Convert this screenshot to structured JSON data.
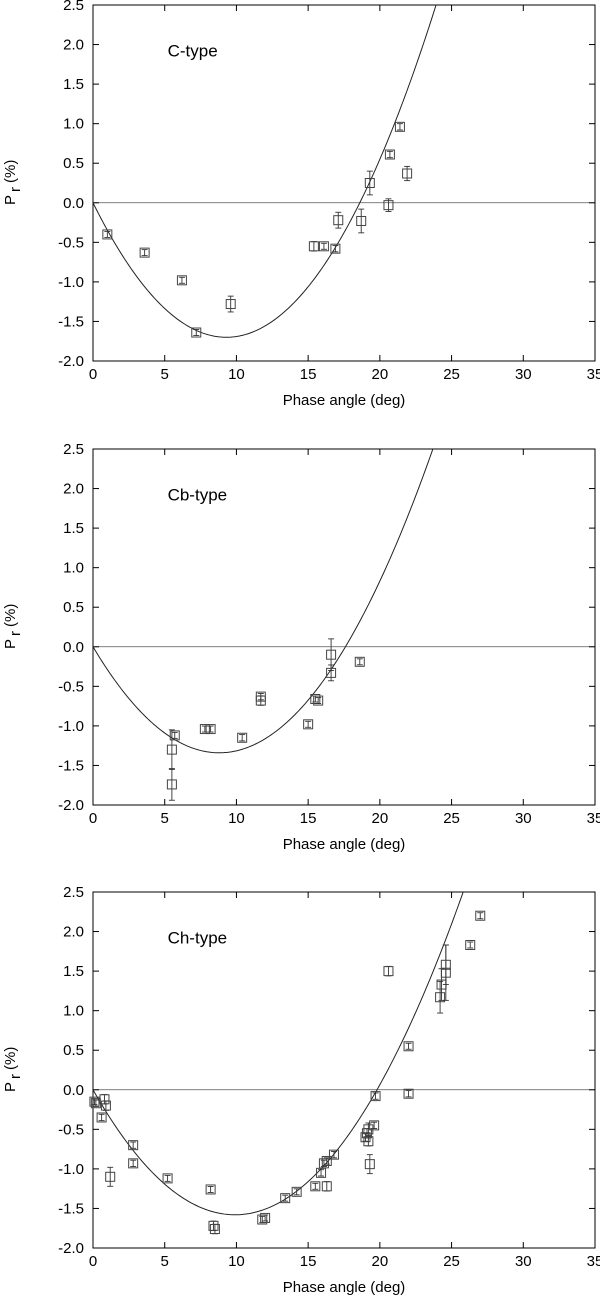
{
  "chart_data": [
    {
      "type": "scatter",
      "title": "C-type",
      "xlabel": "Phase angle (deg)",
      "ylabel_main": "P",
      "ylabel_sub": "r",
      "ylabel_unit": "(%)",
      "xlim": [
        0,
        35
      ],
      "ylim": [
        -2.0,
        2.5
      ],
      "x_ticks": [
        "0",
        "5",
        "10",
        "15",
        "20",
        "25",
        "30",
        "35"
      ],
      "y_ticks": [
        "-2.0",
        "-1.5",
        "-1.0",
        "-0.5",
        "0.0",
        "0.5",
        "1.0",
        "1.5",
        "2.0",
        "2.5"
      ],
      "grid": false,
      "zero_line": true,
      "fit_curve": {
        "type": "quadratic",
        "x_min": 9.3,
        "y_min": -1.7,
        "x_zero": 0,
        "x_max": 27.5
      },
      "points": [
        {
          "x": 1.0,
          "y": -0.4,
          "err": 0.03
        },
        {
          "x": 3.6,
          "y": -0.63,
          "err": 0.03
        },
        {
          "x": 6.2,
          "y": -0.98,
          "err": 0.03
        },
        {
          "x": 7.2,
          "y": -1.64,
          "err": 0.03
        },
        {
          "x": 9.6,
          "y": -1.28,
          "err": 0.1
        },
        {
          "x": 15.4,
          "y": -0.55,
          "err": 0.06
        },
        {
          "x": 16.1,
          "y": -0.55,
          "err": 0.03
        },
        {
          "x": 16.9,
          "y": -0.58,
          "err": 0.04
        },
        {
          "x": 17.1,
          "y": -0.22,
          "err": 0.1
        },
        {
          "x": 18.7,
          "y": -0.23,
          "err": 0.15
        },
        {
          "x": 19.3,
          "y": 0.25,
          "err": 0.15
        },
        {
          "x": 20.6,
          "y": -0.03,
          "err": 0.08
        },
        {
          "x": 20.7,
          "y": 0.61,
          "err": 0.04
        },
        {
          "x": 21.4,
          "y": 0.96,
          "err": 0.04
        },
        {
          "x": 21.9,
          "y": 0.37,
          "err": 0.09
        }
      ]
    },
    {
      "type": "scatter",
      "title": "Cb-type",
      "xlabel": "Phase angle (deg)",
      "ylabel_main": "P",
      "ylabel_sub": "r",
      "ylabel_unit": "(%)",
      "xlim": [
        0,
        35
      ],
      "ylim": [
        -2.0,
        2.5
      ],
      "x_ticks": [
        "0",
        "5",
        "10",
        "15",
        "20",
        "25",
        "30",
        "35"
      ],
      "y_ticks": [
        "-2.0",
        "-1.5",
        "-1.0",
        "-0.5",
        "0.0",
        "0.5",
        "1.0",
        "1.5",
        "2.0",
        "2.5"
      ],
      "grid": false,
      "zero_line": true,
      "fit_curve": {
        "type": "quadratic",
        "x_min": 8.8,
        "y_min": -1.34,
        "x_zero": 0,
        "x_max": 26.4
      },
      "points": [
        {
          "x": 5.5,
          "y": -1.3,
          "err": 0.25
        },
        {
          "x": 5.5,
          "y": -1.74,
          "err": 0.2
        },
        {
          "x": 5.7,
          "y": -1.12,
          "err": 0.03
        },
        {
          "x": 7.8,
          "y": -1.04,
          "err": 0.03
        },
        {
          "x": 8.2,
          "y": -1.04,
          "err": 0.03
        },
        {
          "x": 10.4,
          "y": -1.15,
          "err": 0.04
        },
        {
          "x": 11.7,
          "y": -0.63,
          "err": 0.04
        },
        {
          "x": 11.7,
          "y": -0.68,
          "err": 0.06
        },
        {
          "x": 15.0,
          "y": -0.98,
          "err": 0.03
        },
        {
          "x": 15.5,
          "y": -0.66,
          "err": 0.03
        },
        {
          "x": 15.7,
          "y": -0.68,
          "err": 0.03
        },
        {
          "x": 16.6,
          "y": -0.1,
          "err": 0.2
        },
        {
          "x": 16.6,
          "y": -0.33,
          "err": 0.1
        },
        {
          "x": 18.6,
          "y": -0.19,
          "err": 0.03
        }
      ]
    },
    {
      "type": "scatter",
      "title": "Ch-type",
      "xlabel": "Phase angle (deg)",
      "ylabel_main": "P",
      "ylabel_sub": "r",
      "ylabel_unit": "(%)",
      "xlim": [
        0,
        35
      ],
      "ylim": [
        -2.0,
        2.5
      ],
      "x_ticks": [
        "0",
        "5",
        "10",
        "15",
        "20",
        "25",
        "30",
        "35"
      ],
      "y_ticks": [
        "-2.0",
        "-1.5",
        "-1.0",
        "-0.5",
        "0.0",
        "0.5",
        "1.0",
        "1.5",
        "2.0",
        "2.5"
      ],
      "grid": false,
      "zero_line": true,
      "fit_curve": {
        "type": "quadratic",
        "x_min": 9.9,
        "y_min": -1.58,
        "x_zero": 0,
        "x_max": 28.6
      },
      "points": [
        {
          "x": 0.1,
          "y": -0.15,
          "err": 0.03
        },
        {
          "x": 0.2,
          "y": -0.17,
          "err": 0.04
        },
        {
          "x": 0.6,
          "y": -0.35,
          "err": 0.04
        },
        {
          "x": 0.8,
          "y": -0.12,
          "err": 0.06
        },
        {
          "x": 0.9,
          "y": -0.2,
          "err": 0.06
        },
        {
          "x": 1.2,
          "y": -1.1,
          "err": 0.12
        },
        {
          "x": 2.8,
          "y": -0.7,
          "err": 0.04
        },
        {
          "x": 2.8,
          "y": -0.93,
          "err": 0.04
        },
        {
          "x": 5.2,
          "y": -1.12,
          "err": 0.03
        },
        {
          "x": 8.2,
          "y": -1.26,
          "err": 0.03
        },
        {
          "x": 8.4,
          "y": -1.72,
          "err": 0.06
        },
        {
          "x": 8.5,
          "y": -1.76,
          "err": 0.06
        },
        {
          "x": 11.8,
          "y": -1.64,
          "err": 0.04
        },
        {
          "x": 12.0,
          "y": -1.62,
          "err": 0.03
        },
        {
          "x": 13.4,
          "y": -1.37,
          "err": 0.03
        },
        {
          "x": 14.2,
          "y": -1.29,
          "err": 0.03
        },
        {
          "x": 15.5,
          "y": -1.22,
          "err": 0.03
        },
        {
          "x": 15.9,
          "y": -1.05,
          "err": 0.04
        },
        {
          "x": 16.1,
          "y": -0.93,
          "err": 0.04
        },
        {
          "x": 16.3,
          "y": -0.9,
          "err": 0.04
        },
        {
          "x": 16.3,
          "y": -1.22,
          "err": 0.06
        },
        {
          "x": 16.8,
          "y": -0.82,
          "err": 0.04
        },
        {
          "x": 19.0,
          "y": -0.6,
          "err": 0.05
        },
        {
          "x": 19.1,
          "y": -0.55,
          "err": 0.06
        },
        {
          "x": 19.2,
          "y": -0.5,
          "err": 0.08
        },
        {
          "x": 19.2,
          "y": -0.65,
          "err": 0.06
        },
        {
          "x": 19.3,
          "y": -0.94,
          "err": 0.12
        },
        {
          "x": 19.6,
          "y": -0.45,
          "err": 0.04
        },
        {
          "x": 19.7,
          "y": -0.08,
          "err": 0.04
        },
        {
          "x": 20.6,
          "y": 1.5,
          "err": 0.06
        },
        {
          "x": 22.0,
          "y": 0.55,
          "err": 0.03
        },
        {
          "x": 22.0,
          "y": -0.05,
          "err": 0.04
        },
        {
          "x": 24.2,
          "y": 1.17,
          "err": 0.2
        },
        {
          "x": 24.3,
          "y": 1.33,
          "err": 0.2
        },
        {
          "x": 24.6,
          "y": 1.48,
          "err": 0.35
        },
        {
          "x": 24.6,
          "y": 1.58,
          "err": 0.25
        },
        {
          "x": 26.3,
          "y": 1.83,
          "err": 0.03
        },
        {
          "x": 27.0,
          "y": 2.2,
          "err": 0.03
        }
      ]
    }
  ]
}
